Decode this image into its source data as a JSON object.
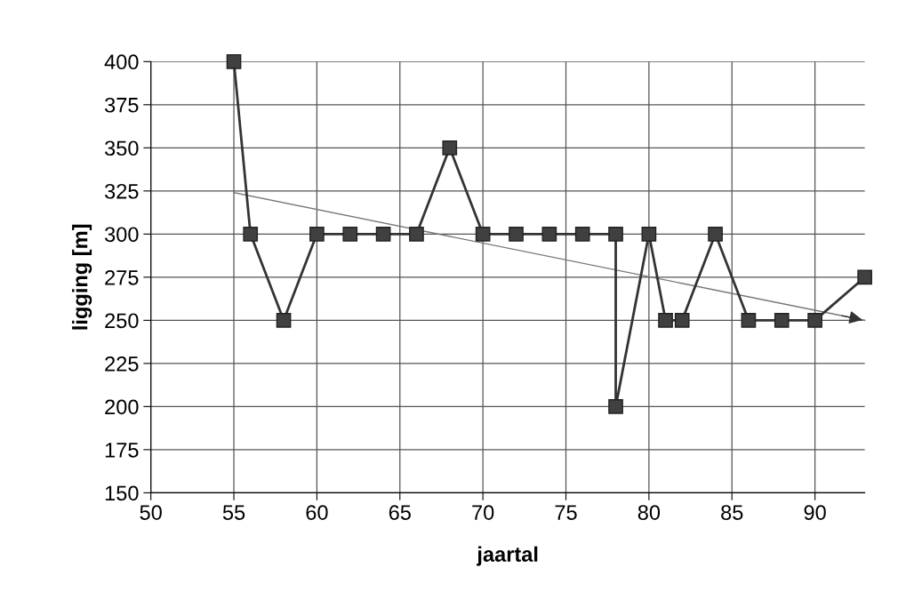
{
  "chart_data": {
    "type": "line",
    "xlabel": "jaartal",
    "ylabel": "ligging [m]",
    "xlim": [
      50,
      93
    ],
    "xticks": [
      50,
      55,
      60,
      65,
      70,
      75,
      80,
      85,
      90
    ],
    "ylim": [
      150,
      400
    ],
    "yticks": [
      150,
      175,
      200,
      225,
      250,
      275,
      300,
      325,
      350,
      375,
      400
    ],
    "grid": true,
    "legend": false,
    "marker": "square",
    "line_style": "solid",
    "series": [
      {
        "color": "#333333",
        "x": [
          55,
          56,
          58,
          60,
          62,
          64,
          66,
          68,
          70,
          72,
          74,
          76,
          78,
          78,
          80,
          81,
          82,
          84,
          86,
          88,
          90,
          93
        ],
        "values": [
          400,
          300,
          250,
          300,
          300,
          300,
          300,
          350,
          300,
          300,
          300,
          300,
          300,
          200,
          300,
          250,
          250,
          300,
          250,
          250,
          250,
          275
        ]
      },
      {
        "type": "line",
        "color": "#777777",
        "marker": "none",
        "x": [
          55,
          93
        ],
        "values": [
          324,
          250
        ]
      }
    ]
  }
}
